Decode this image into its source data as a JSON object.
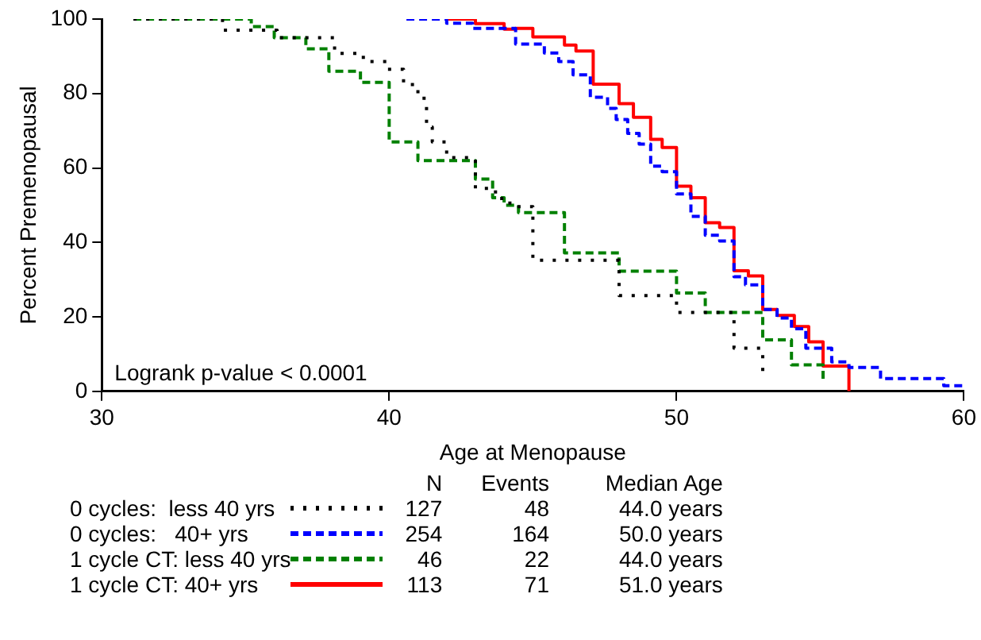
{
  "chart_data": {
    "type": "step",
    "xlabel": "Age at Menopause",
    "ylabel": "Percent Premenopausal",
    "xlim": [
      30,
      60
    ],
    "xticks": [
      30,
      40,
      50,
      60
    ],
    "ylim": [
      0,
      100
    ],
    "yticks": [
      0,
      20,
      40,
      60,
      80,
      100
    ],
    "grid": false,
    "legend": "bottom",
    "marker": "none",
    "annotations": [
      "Logrank p-value < 0.0001",
      "N",
      "Events",
      "Median Age",
      "127",
      "48",
      "44.0 years",
      "254",
      "164",
      "50.0 years",
      "46",
      "22",
      "44.0 years",
      "113",
      "71",
      "51.0 years"
    ],
    "series": [
      {
        "name": "0 cycles:  less 40 yrs",
        "color": "#000000",
        "line_style": "dotted",
        "x": [
          31.1,
          34.2,
          36.1,
          38.1,
          39.1,
          39.9,
          40.5,
          41.0,
          41.3,
          41.5,
          42.0,
          43.0,
          43.7,
          44.2,
          45.0,
          48.0,
          50.0,
          52.0,
          53.0
        ],
        "values": [
          100,
          97,
          95,
          90.8,
          88.6,
          86.5,
          82.4,
          78.7,
          71,
          67,
          62.8,
          54.5,
          51.8,
          49.6,
          35.2,
          25.7,
          21.2,
          11.6,
          4.0
        ]
      },
      {
        "name": "0 cycles:   40+ yrs",
        "color": "#0000ff",
        "line_style": "dashed",
        "x": [
          40.6,
          42.0,
          42.9,
          44.4,
          45.4,
          45.9,
          46.4,
          47.0,
          47.6,
          47.9,
          48.3,
          48.7,
          49.1,
          49.5,
          50.0,
          50.5,
          51.0,
          51.5,
          52.0,
          52.4,
          53.0,
          53.5,
          54.0,
          54.5,
          55.4,
          56.0,
          57.1,
          59.3,
          60.0
        ],
        "values": [
          100,
          98.9,
          97.5,
          93.3,
          90.9,
          88.6,
          85,
          79,
          76,
          73,
          69.3,
          66.4,
          60.5,
          59,
          53,
          47,
          41.9,
          40.4,
          30.8,
          28.6,
          22,
          19.7,
          16.8,
          11.6,
          7.9,
          6.4,
          3.4,
          1.5,
          1.5
        ]
      },
      {
        "name": "1 cycle CT: less 40 yrs",
        "color": "#008000",
        "line_style": "dashed",
        "x": [
          31.1,
          35.2,
          36.0,
          37.1,
          37.9,
          39.0,
          40.0,
          41.0,
          43.0,
          43.6,
          44.0,
          44.5,
          46.1,
          48.0,
          50.0,
          51.0,
          53.0,
          54.0,
          55.1
        ],
        "values": [
          100,
          98,
          95,
          92,
          86,
          83,
          67,
          62,
          57,
          52,
          50,
          48,
          37.2,
          32.3,
          26.4,
          21.2,
          13.8,
          7.1,
          2.7
        ]
      },
      {
        "name": "1 cycle CT: 40+ yrs",
        "color": "#ff0000",
        "line_style": "solid",
        "x": [
          42.0,
          43.0,
          44.0,
          44.4,
          45.0,
          46.1,
          46.5,
          47.1,
          48.0,
          48.5,
          49.1,
          49.5,
          50.0,
          50.5,
          51.0,
          51.5,
          52.0,
          52.5,
          53.0,
          53.5,
          54.1,
          54.6,
          55.1,
          56.0
        ],
        "values": [
          100,
          98.8,
          97.3,
          97.5,
          95.2,
          93,
          91.4,
          82.5,
          77.3,
          73.6,
          67.7,
          65.5,
          55.1,
          52,
          45.3,
          44,
          32.4,
          31,
          22,
          20.4,
          17.4,
          13.3,
          6.8,
          0
        ]
      }
    ]
  }
}
